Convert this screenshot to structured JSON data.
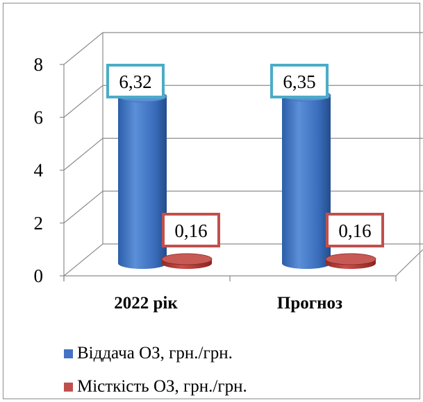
{
  "chart_data": {
    "type": "bar",
    "categories": [
      "2022 рік",
      "Прогноз"
    ],
    "series": [
      {
        "name": "Віддача ОЗ, грн./грн.",
        "values": [
          6.32,
          6.35
        ],
        "labels": [
          "6,32",
          "6,35"
        ],
        "color": "#4472c4"
      },
      {
        "name": "Місткість ОЗ, грн./грн.",
        "values": [
          0.16,
          0.16
        ],
        "labels": [
          "0,16",
          "0,16"
        ],
        "color": "#c0504d"
      }
    ],
    "yticks": [
      "0",
      "2",
      "4",
      "6",
      "8"
    ],
    "ylim": [
      0,
      8
    ],
    "grid": true,
    "legend_position": "bottom-left",
    "label_border_colors": [
      "#4bacc6",
      "#c0504d"
    ]
  }
}
